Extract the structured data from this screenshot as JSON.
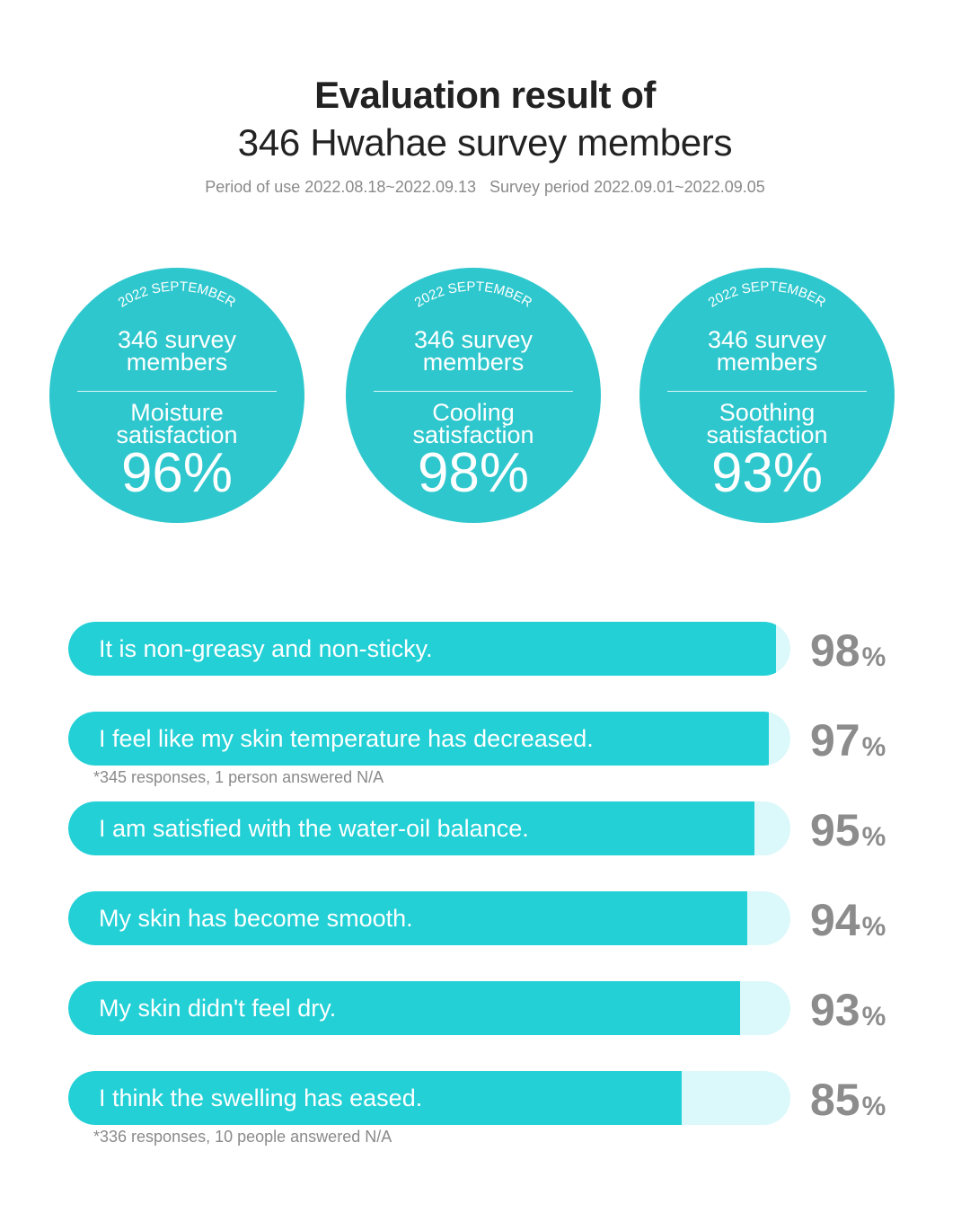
{
  "header": {
    "title_line1": "Evaluation result of",
    "title_line2": "346 Hwahae survey members",
    "period_of_use": "Period of use 2022.08.18~2022.09.13",
    "survey_period": "Survey period 2022.09.01~2022.09.05"
  },
  "badges": [
    {
      "arc_text": "2022 SEPTEMBER",
      "members": "346 survey members",
      "metric": "Moisture satisfaction",
      "value": "96%"
    },
    {
      "arc_text": "2022 SEPTEMBER",
      "members": "346 survey members",
      "metric": "Cooling satisfaction",
      "value": "98%"
    },
    {
      "arc_text": "2022 SEPTEMBER",
      "members": "346 survey members",
      "metric": "Soothing satisfaction",
      "value": "93%"
    }
  ],
  "chart_data": {
    "type": "bar",
    "orientation": "horizontal",
    "categories": [
      "It is non-greasy and non-sticky.",
      "I feel like my skin temperature has decreased.",
      "I am satisfied with the water-oil balance.",
      "My skin has become smooth.",
      "My skin didn't feel dry.",
      "I think the swelling has eased."
    ],
    "values": [
      98,
      97,
      95,
      94,
      93,
      85
    ],
    "unit": "%",
    "xlim": [
      0,
      100
    ],
    "notes": [
      {
        "after_index": 1,
        "text": "*345 responses, 1 person answered N/A"
      },
      {
        "after_index": 5,
        "text": "*336 responses, 10 people answered N/A"
      }
    ]
  },
  "colors": {
    "accent": "#22d0d6",
    "badge": "#2ec7cd",
    "track": "#dbf8fa",
    "value_text": "#8c8c8c"
  }
}
